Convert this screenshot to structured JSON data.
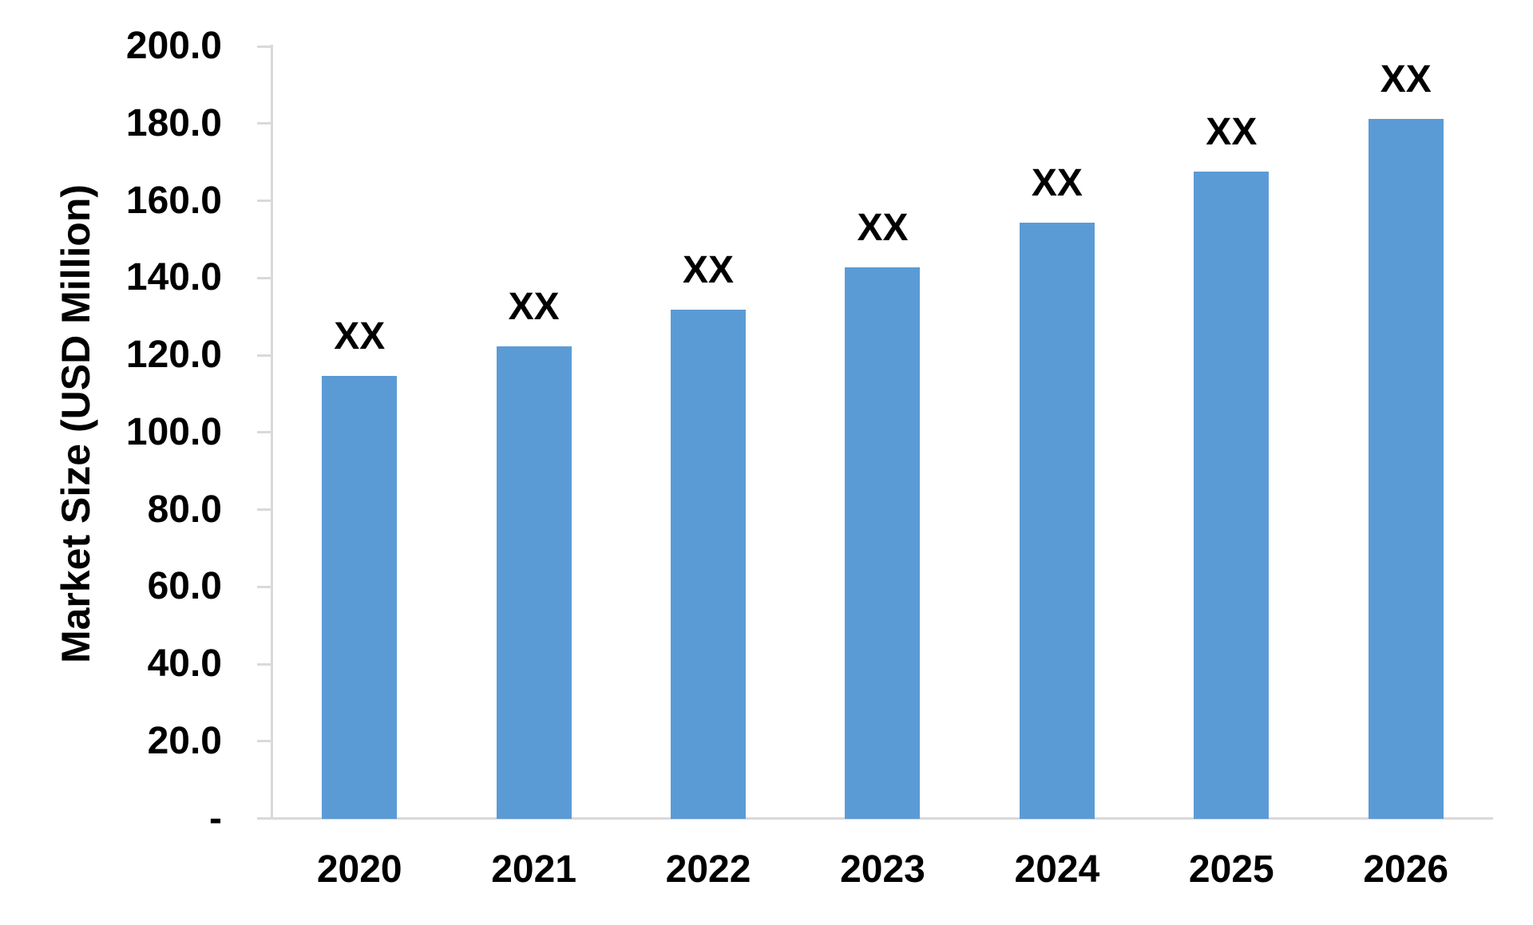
{
  "chart_data": {
    "type": "bar",
    "title": "",
    "xlabel": "",
    "ylabel": "Market Size (USD Million)",
    "categories": [
      "2020",
      "2021",
      "2022",
      "2023",
      "2024",
      "2025",
      "2026"
    ],
    "values": [
      114.8,
      122.4,
      131.9,
      142.9,
      154.5,
      167.7,
      181.2
    ],
    "bar_labels": [
      "XX",
      "XX",
      "XX",
      "XX",
      "XX",
      "XX",
      "XX"
    ],
    "y_axis": {
      "min": 0,
      "max": 200,
      "tick_step": 20,
      "tick_labels": [
        "200.0",
        "180.0",
        "160.0",
        "140.0",
        "120.0",
        "100.0",
        "80.0",
        "60.0",
        "40.0",
        "20.0",
        "-"
      ]
    },
    "legend": "none",
    "grid": "off",
    "colors": {
      "bar": "#5B9BD5",
      "axis": "#D9D9D9",
      "text": "#000000",
      "background": "#FFFFFF"
    }
  }
}
